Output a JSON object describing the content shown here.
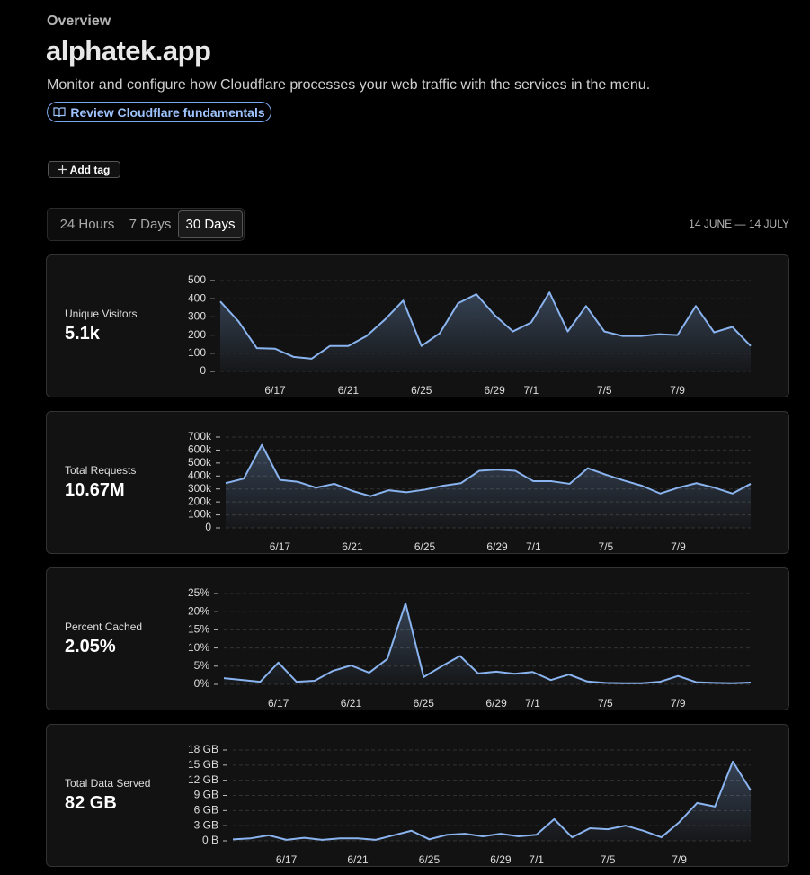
{
  "header": {
    "eyebrow": "Overview",
    "title": "alphatek.app",
    "description": "Monitor and configure how Cloudflare processes your web traffic with the services in the menu.",
    "link": "Review Cloudflare fundamentals"
  },
  "add_tag": "Add tag",
  "tabs": [
    "24 Hours",
    "7 Days",
    "30 Days"
  ],
  "selected_tab": 2,
  "date_range": "14 JUNE — 14 JULY",
  "chart_data": [
    {
      "type": "line",
      "title": "Unique Visitors",
      "summary": "5.1k",
      "color": "#8ab4f0",
      "grid": true,
      "categories": [
        null,
        null,
        null,
        "6/17",
        null,
        null,
        null,
        "6/21",
        null,
        null,
        null,
        "6/25",
        null,
        null,
        null,
        "6/29",
        null,
        "7/1",
        null,
        null,
        null,
        "7/5",
        null,
        null,
        null,
        "7/9",
        null,
        null,
        null,
        null
      ],
      "values": [
        385,
        275,
        128,
        125,
        80,
        70,
        140,
        140,
        195,
        285,
        390,
        140,
        210,
        375,
        425,
        310,
        220,
        270,
        435,
        220,
        360,
        220,
        195,
        195,
        205,
        200,
        360,
        215,
        245,
        140
      ],
      "ylim": [
        0,
        500
      ],
      "yticks": [
        0,
        100,
        200,
        300,
        400,
        500
      ]
    },
    {
      "type": "line",
      "title": "Total Requests",
      "summary": "10.67M",
      "color": "#8ab4f0",
      "grid": true,
      "categories": [
        null,
        null,
        null,
        "6/17",
        null,
        null,
        null,
        "6/21",
        null,
        null,
        null,
        "6/25",
        null,
        null,
        null,
        "6/29",
        null,
        "7/1",
        null,
        null,
        null,
        "7/5",
        null,
        null,
        null,
        "7/9",
        null,
        null,
        null,
        null
      ],
      "values": [
        345000,
        380000,
        640000,
        370000,
        355000,
        310000,
        340000,
        285000,
        245000,
        290000,
        275000,
        295000,
        325000,
        345000,
        440000,
        450000,
        440000,
        360000,
        360000,
        340000,
        460000,
        410000,
        365000,
        325000,
        265000,
        310000,
        345000,
        310000,
        265000,
        340000
      ],
      "ylim": [
        0,
        700000
      ],
      "yticks": [
        0,
        {
          "value": 100000,
          "label": "100k"
        },
        {
          "value": 200000,
          "label": "200k"
        },
        {
          "value": 300000,
          "label": "300k"
        },
        {
          "value": 400000,
          "label": "400k"
        },
        {
          "value": 500000,
          "label": "500k"
        },
        {
          "value": 600000,
          "label": "600k"
        },
        {
          "value": 700000,
          "label": "700k"
        }
      ]
    },
    {
      "type": "line",
      "title": "Percent Cached",
      "summary": "2.05%",
      "color": "#8ab4f0",
      "grid": true,
      "categories": [
        null,
        null,
        null,
        "6/17",
        null,
        null,
        null,
        "6/21",
        null,
        null,
        null,
        "6/25",
        null,
        null,
        null,
        "6/29",
        null,
        "7/1",
        null,
        null,
        null,
        "7/5",
        null,
        null,
        null,
        "7/9",
        null,
        null,
        null,
        null
      ],
      "values": [
        1.7,
        1.2,
        0.7,
        6,
        0.7,
        1,
        3.7,
        5.2,
        3.2,
        7,
        22.3,
        2,
        5,
        7.8,
        3,
        3.5,
        2.9,
        3.4,
        1.2,
        2.7,
        0.8,
        0.4,
        0.3,
        0.3,
        0.7,
        2.3,
        0.6,
        0.4,
        0.3,
        0.5
      ],
      "ylim": [
        0,
        25
      ],
      "yticks": [
        {
          "value": 0,
          "label": "0%"
        },
        {
          "value": 5,
          "label": "5%"
        },
        {
          "value": 10,
          "label": "10%"
        },
        {
          "value": 15,
          "label": "15%"
        },
        {
          "value": 20,
          "label": "20%"
        },
        {
          "value": 25,
          "label": "25%"
        }
      ]
    },
    {
      "type": "line",
      "title": "Total Data Served",
      "summary": "82 GB",
      "color": "#8ab4f0",
      "grid": true,
      "categories": [
        null,
        null,
        null,
        "6/17",
        null,
        null,
        null,
        "6/21",
        null,
        null,
        null,
        "6/25",
        null,
        null,
        null,
        "6/29",
        null,
        "7/1",
        null,
        null,
        null,
        "7/5",
        null,
        null,
        null,
        "7/9",
        null,
        null,
        null,
        null
      ],
      "values": [
        0.3,
        0.5,
        1.1,
        0.2,
        0.6,
        0.2,
        0.5,
        0.5,
        0.2,
        1.1,
        2,
        0.3,
        1.2,
        1.4,
        0.9,
        1.4,
        0.9,
        1.2,
        4.3,
        0.7,
        2.5,
        2.3,
        3,
        2,
        0.7,
        3.7,
        7.5,
        6.8,
        15.7,
        10
      ],
      "ylim": [
        0,
        18
      ],
      "yticks": [
        {
          "value": 0,
          "label": "0 B"
        },
        {
          "value": 3,
          "label": "3 GB"
        },
        {
          "value": 6,
          "label": "6 GB"
        },
        {
          "value": 9,
          "label": "9 GB"
        },
        {
          "value": 12,
          "label": "12 GB"
        },
        {
          "value": 15,
          "label": "15 GB"
        },
        {
          "value": 18,
          "label": "18 GB"
        }
      ]
    }
  ]
}
